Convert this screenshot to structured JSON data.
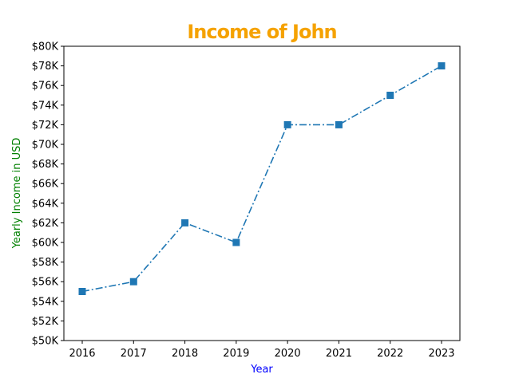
{
  "chart_data": {
    "type": "line",
    "title": "Income of John",
    "title_color": "#f5a200",
    "xlabel": "Year",
    "xlabel_color": "#0000ff",
    "ylabel": "Yearly Income in USD",
    "ylabel_color": "#008000",
    "x": [
      2016,
      2017,
      2018,
      2019,
      2020,
      2021,
      2022,
      2023
    ],
    "x_tick_labels": [
      "2016",
      "2017",
      "2018",
      "2019",
      "2020",
      "2021",
      "2022",
      "2023"
    ],
    "series": [
      {
        "values": [
          55000,
          56000,
          62000,
          60000,
          72000,
          72000,
          75000,
          78000
        ],
        "color": "#1f77b4",
        "line_style": "dash-dot",
        "marker": "square"
      }
    ],
    "ylim": [
      50000,
      80000
    ],
    "y_ticks": [
      50000,
      52000,
      54000,
      56000,
      58000,
      60000,
      62000,
      64000,
      66000,
      68000,
      70000,
      72000,
      74000,
      76000,
      78000,
      80000
    ],
    "y_tick_labels": [
      "$50K",
      "$52K",
      "$54K",
      "$56K",
      "$58K",
      "$60K",
      "$62K",
      "$64K",
      "$66K",
      "$68K",
      "$70K",
      "$72K",
      "$74K",
      "$76K",
      "$78K",
      "$80K"
    ],
    "grid": false,
    "legend": "none"
  }
}
